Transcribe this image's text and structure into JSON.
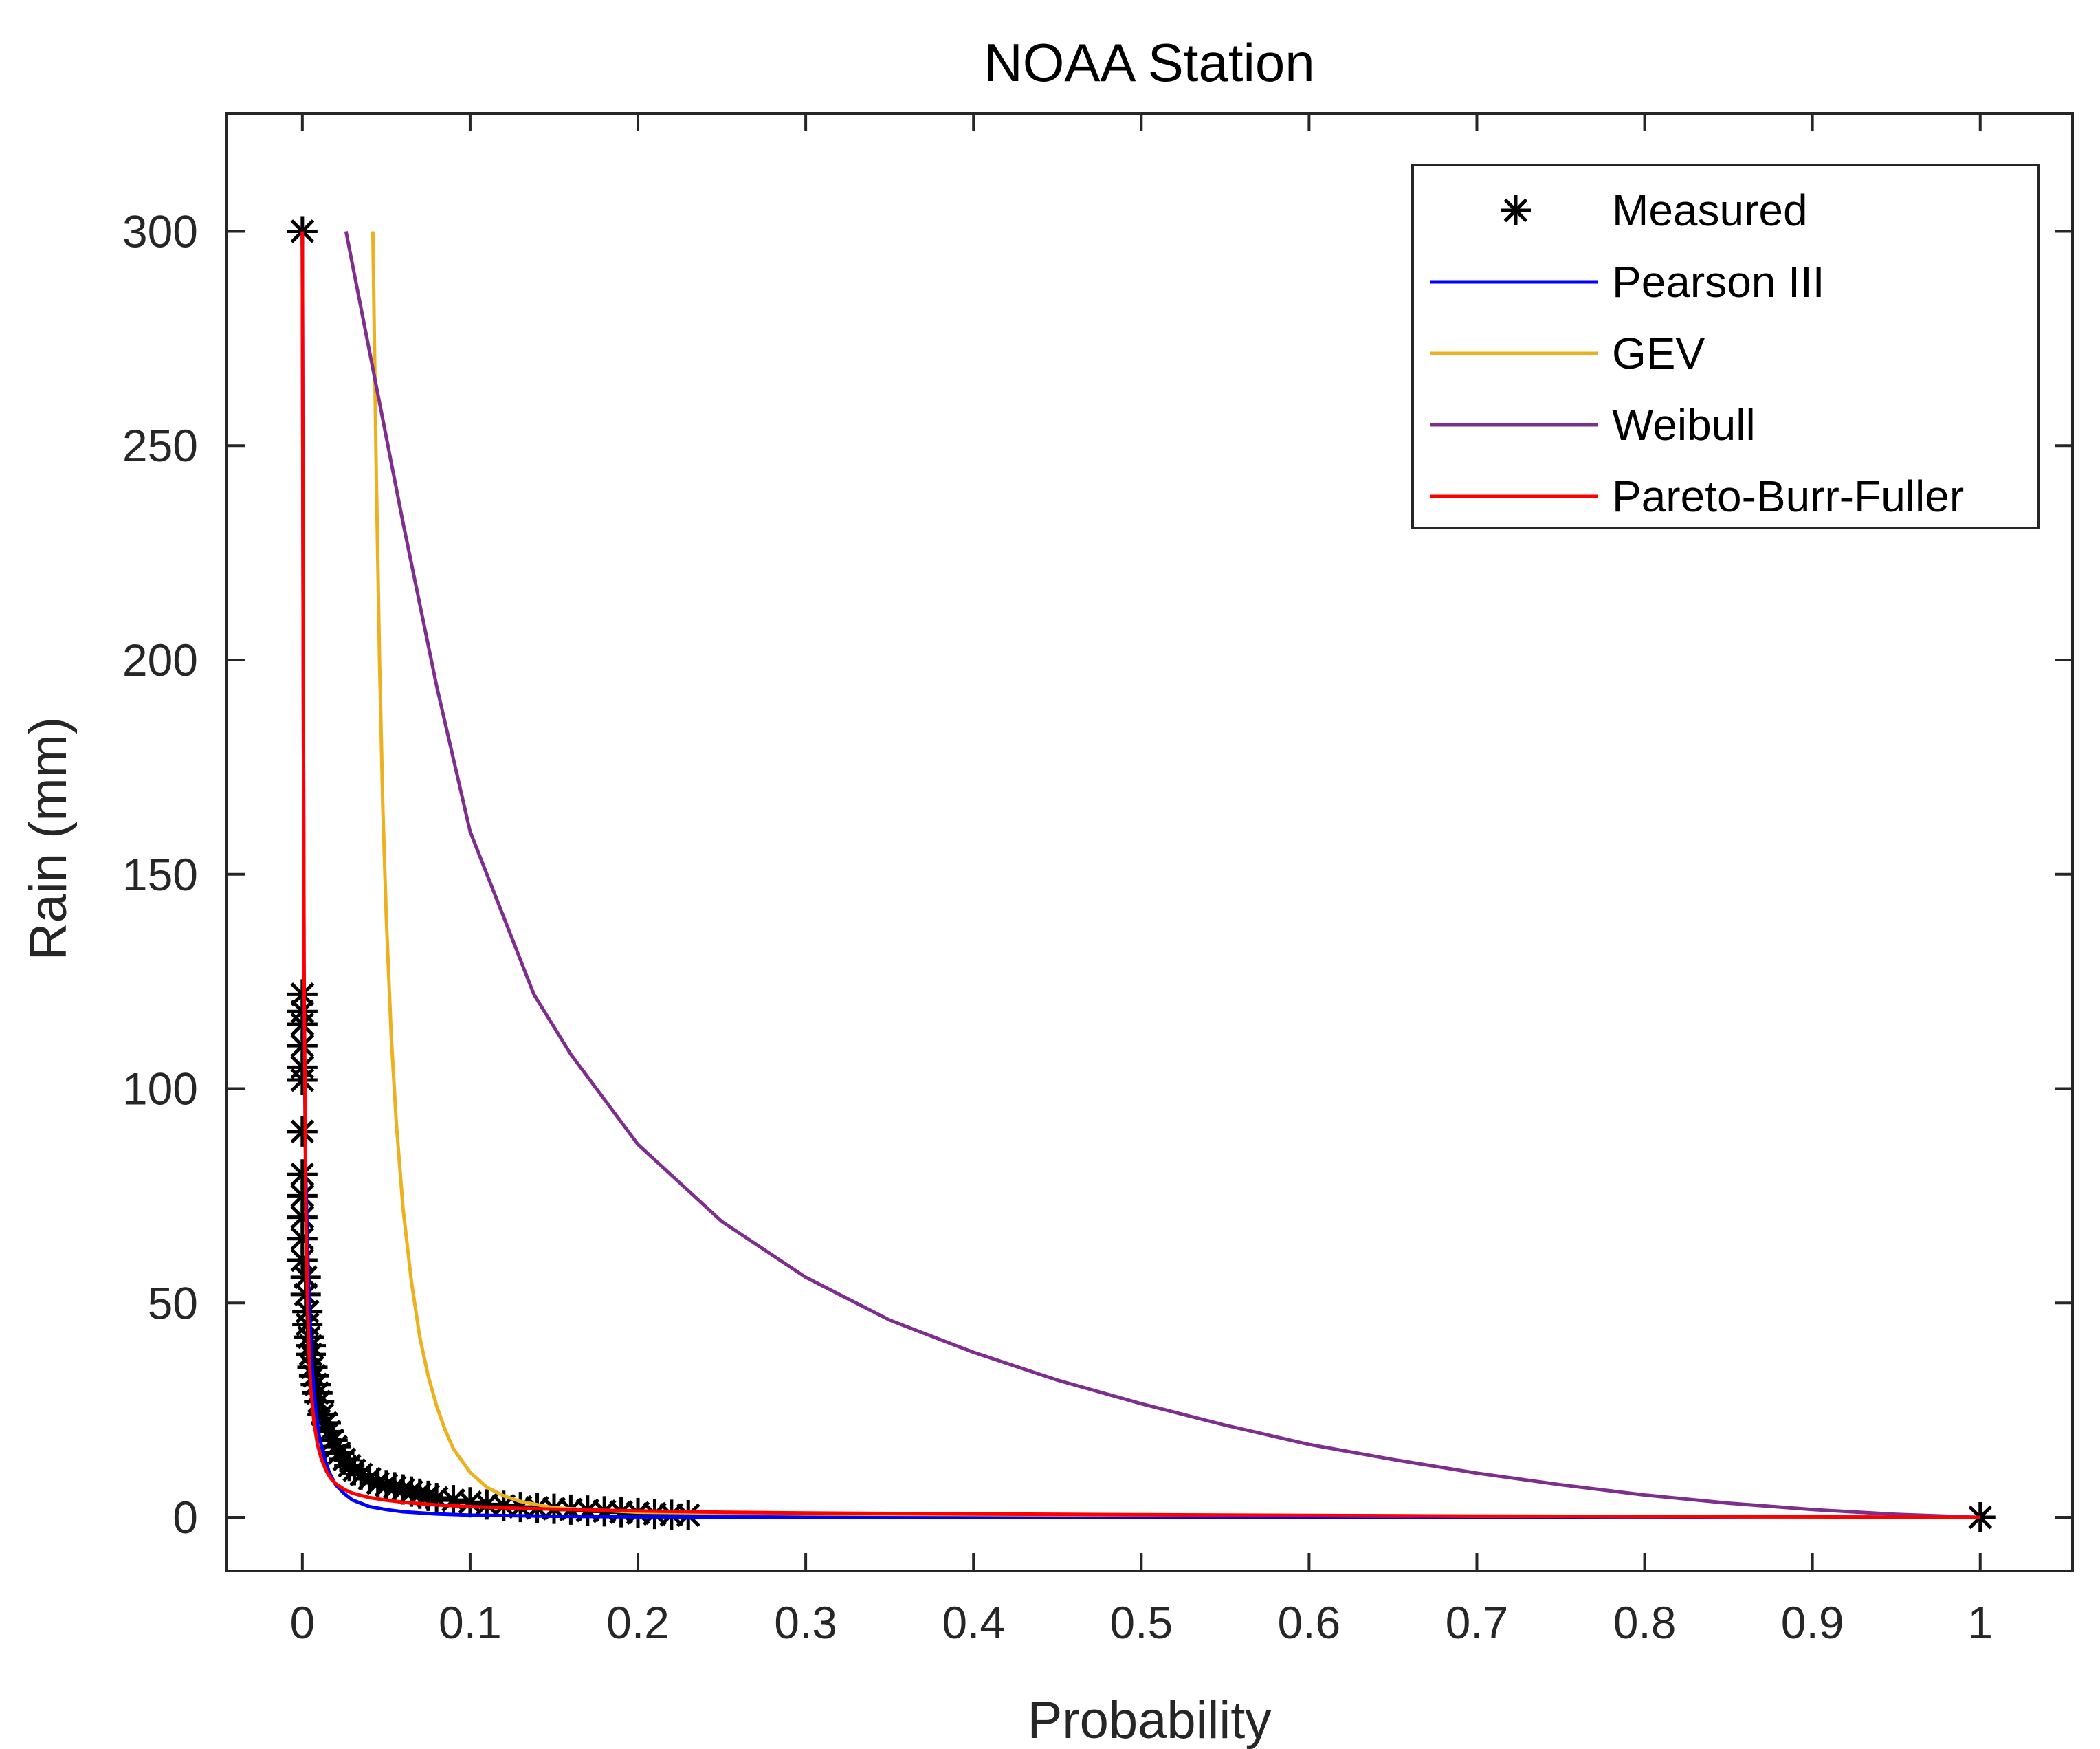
{
  "chart_data": {
    "type": "line",
    "title": "NOAA Station",
    "xlabel": "Probability",
    "ylabel": "Rain (mm)",
    "xlim": [
      -0.045,
      1.055
    ],
    "ylim": [
      -12.5,
      327.5
    ],
    "xticks": [
      0,
      0.1,
      0.2,
      0.3,
      0.4,
      0.5,
      0.6,
      0.7,
      0.8,
      0.9,
      1
    ],
    "xtick_labels": [
      "0",
      "0.1",
      "0.2",
      "0.3",
      "0.4",
      "0.5",
      "0.6",
      "0.7",
      "0.8",
      "0.9",
      "1"
    ],
    "yticks": [
      0,
      50,
      100,
      150,
      200,
      250,
      300
    ],
    "ytick_labels": [
      "0",
      "50",
      "100",
      "150",
      "200",
      "250",
      "300"
    ],
    "grid": false,
    "legend_position": "top-right",
    "series": [
      {
        "name": "Measured",
        "kind": "marker",
        "marker": "asterisk",
        "color": "#000000",
        "x": [
          0,
          0,
          0,
          0,
          0,
          0,
          0,
          0,
          0,
          0,
          0,
          0,
          0,
          0.002,
          0.002,
          0.003,
          0.003,
          0.004,
          0.005,
          0.005,
          0.006,
          0.007,
          0.008,
          0.009,
          0.01,
          0.012,
          0.014,
          0.016,
          0.018,
          0.02,
          0.022,
          0.025,
          0.028,
          0.031,
          0.035,
          0.04,
          0.045,
          0.05,
          0.055,
          0.06,
          0.065,
          0.07,
          0.075,
          0.08,
          0.09,
          0.1,
          0.11,
          0.12,
          0.13,
          0.14,
          0.15,
          0.16,
          0.17,
          0.18,
          0.19,
          0.2,
          0.21,
          0.22,
          0.23,
          1
        ],
        "y": [
          300,
          122,
          118,
          115,
          110,
          105,
          102,
          90,
          80,
          75,
          70,
          65,
          60,
          56,
          52,
          48,
          45,
          42,
          40,
          38,
          35,
          33,
          31,
          29,
          27,
          24,
          22,
          20,
          18,
          16.5,
          15,
          13.5,
          12,
          11,
          10,
          9,
          8,
          7.5,
          7,
          6.5,
          6,
          5.5,
          5,
          4.5,
          4,
          3.5,
          3,
          2.7,
          2.4,
          2.2,
          2,
          1.8,
          1.6,
          1.4,
          1.2,
          1.0,
          0.8,
          0.6,
          0.5,
          0
        ]
      },
      {
        "name": "Pearson III",
        "kind": "line",
        "color": "#0000ff",
        "x": [
          0,
          0.001,
          0.002,
          0.004,
          0.006,
          0.008,
          0.01,
          0.013,
          0.016,
          0.02,
          0.025,
          0.03,
          0.04,
          0.05,
          0.06,
          0.08,
          0.1,
          0.15,
          0.2,
          0.3,
          0.5,
          0.7,
          1
        ],
        "y": [
          300,
          120,
          80,
          50,
          34,
          25,
          19,
          14,
          10.5,
          7.5,
          5.5,
          4,
          2.5,
          1.8,
          1.3,
          0.8,
          0.5,
          0.25,
          0.1,
          0.05,
          0.02,
          0.01,
          0
        ]
      },
      {
        "name": "GEV",
        "kind": "line",
        "color": "#edb120",
        "x": [
          0.042,
          0.044,
          0.046,
          0.048,
          0.05,
          0.053,
          0.056,
          0.06,
          0.065,
          0.07,
          0.075,
          0.08,
          0.085,
          0.09,
          0.1,
          0.11,
          0.12,
          0.13,
          0.15,
          0.2,
          0.3,
          0.5,
          0.7,
          1
        ],
        "y": [
          300,
          245,
          200,
          165,
          140,
          112,
          92,
          72,
          55,
          42,
          33,
          26,
          20.5,
          16,
          10.5,
          7,
          5,
          3.7,
          2.2,
          1.2,
          0.8,
          0.5,
          0.3,
          0
        ]
      },
      {
        "name": "Weibull",
        "kind": "line",
        "color": "#7e2f8e",
        "x": [
          0.026,
          0.04,
          0.06,
          0.08,
          0.1,
          0.12,
          0.138,
          0.16,
          0.2,
          0.25,
          0.3,
          0.35,
          0.4,
          0.45,
          0.5,
          0.55,
          0.6,
          0.65,
          0.7,
          0.75,
          0.8,
          0.85,
          0.9,
          0.95,
          1
        ],
        "y": [
          300,
          272,
          232,
          194,
          160,
          140,
          122,
          108,
          87,
          69,
          56,
          46,
          38.5,
          32,
          26.5,
          21.5,
          17,
          13.5,
          10.3,
          7.6,
          5.2,
          3.3,
          1.8,
          0.7,
          0
        ]
      },
      {
        "name": "Pareto-Burr-Fuller",
        "kind": "line",
        "color": "#ff0000",
        "x": [
          0,
          0.0005,
          0.001,
          0.002,
          0.003,
          0.004,
          0.005,
          0.007,
          0.009,
          0.011,
          0.014,
          0.017,
          0.02,
          0.025,
          0.03,
          0.04,
          0.05,
          0.06,
          0.08,
          0.1,
          0.13,
          0.16,
          0.2,
          0.25,
          0.3,
          0.4,
          0.5,
          0.6,
          0.7,
          0.8,
          0.9,
          1
        ],
        "y": [
          300,
          200,
          130,
          75,
          50,
          38,
          30,
          22,
          17,
          14,
          11,
          9,
          7.8,
          6.5,
          5.6,
          4.6,
          4,
          3.5,
          2.9,
          2.5,
          2.1,
          1.8,
          1.5,
          1.2,
          1,
          0.8,
          0.6,
          0.45,
          0.3,
          0.2,
          0.1,
          0
        ]
      }
    ]
  }
}
